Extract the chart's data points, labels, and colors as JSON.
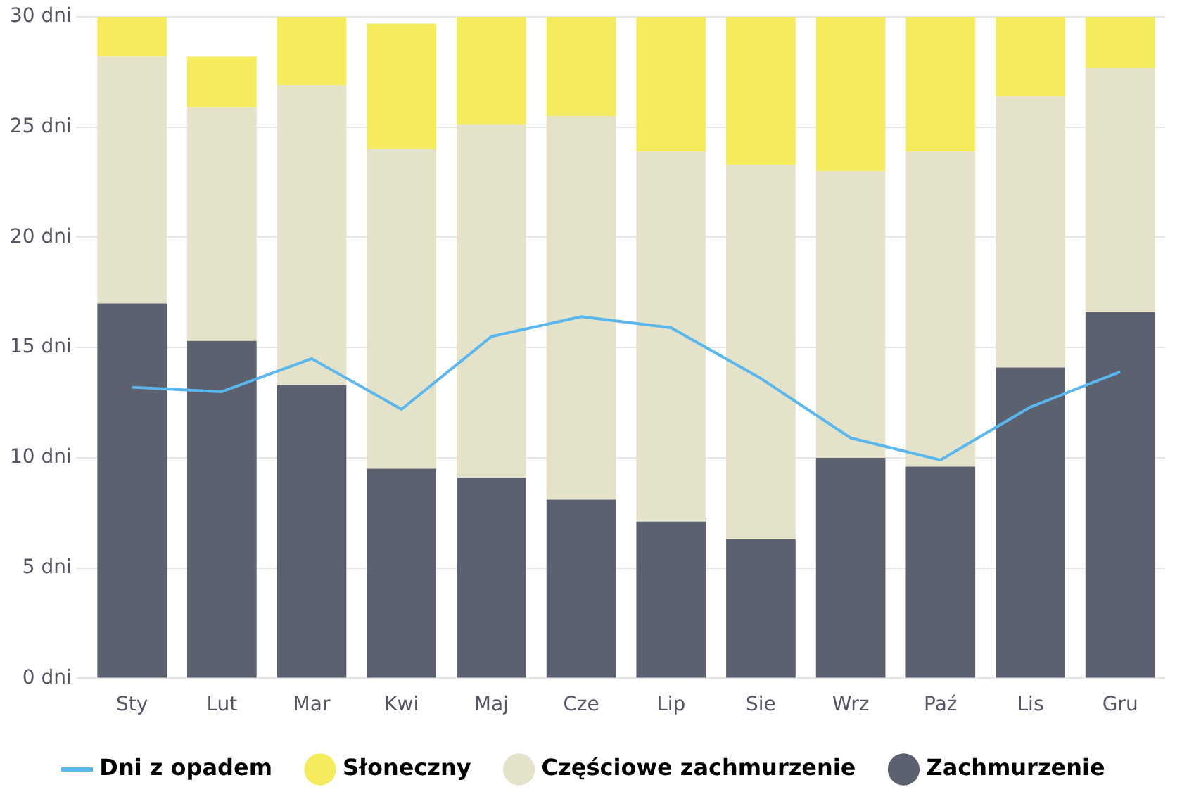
{
  "chart_data": {
    "type": "bar",
    "stacked": true,
    "categories": [
      "Sty",
      "Lut",
      "Mar",
      "Kwi",
      "Maj",
      "Cze",
      "Lip",
      "Sie",
      "Wrz",
      "Paź",
      "Lis",
      "Gru"
    ],
    "series": [
      {
        "name": "Zachmurzenie",
        "color": "#5b616e",
        "values": [
          17.0,
          15.3,
          13.3,
          9.5,
          9.1,
          8.1,
          7.1,
          6.3,
          10.0,
          9.6,
          14.1,
          16.6
        ]
      },
      {
        "name": "Częściowe zachmurzenie",
        "color": "#e4e2c9",
        "values": [
          11.2,
          10.6,
          13.6,
          14.5,
          16.0,
          17.4,
          16.8,
          17.0,
          13.0,
          14.3,
          12.3,
          11.1
        ]
      },
      {
        "name": "Słoneczny",
        "color": "#f4ec5c",
        "values": [
          1.8,
          2.3,
          3.1,
          5.7,
          4.9,
          4.5,
          6.1,
          6.7,
          7.0,
          6.1,
          3.6,
          2.3
        ]
      },
      {
        "name": "Dni z opadem",
        "type": "line",
        "color": "#5ab7ee",
        "values": [
          13.2,
          13.0,
          14.5,
          12.2,
          15.5,
          16.4,
          15.9,
          13.6,
          10.9,
          9.9,
          12.3,
          13.9
        ]
      }
    ],
    "ylim": [
      0,
      30
    ],
    "yticks": [
      {
        "value": 0,
        "label": "0 dni"
      },
      {
        "value": 5,
        "label": "5 dni"
      },
      {
        "value": 10,
        "label": "10 dni"
      },
      {
        "value": 15,
        "label": "15 dni"
      },
      {
        "value": 20,
        "label": "20 dni"
      },
      {
        "value": 25,
        "label": "25 dni"
      },
      {
        "value": 30,
        "label": "30 dni"
      }
    ],
    "grid": "y",
    "legend": "bottom",
    "marker": "none"
  }
}
